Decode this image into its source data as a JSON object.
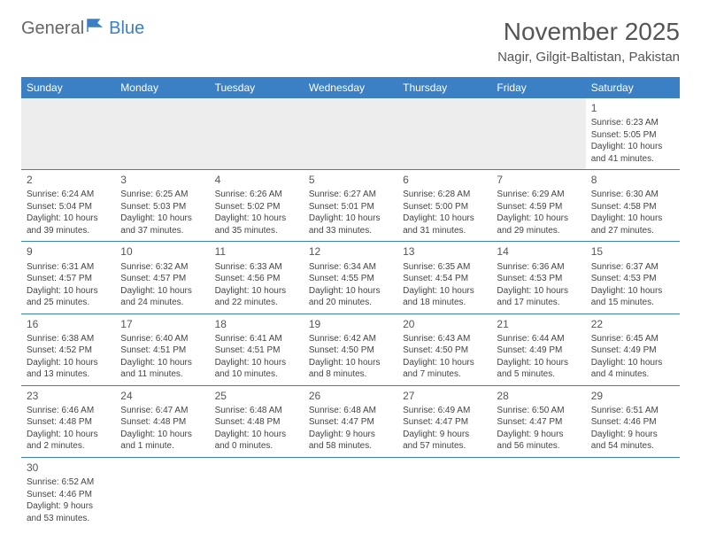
{
  "logo": {
    "part1": "General",
    "part2": "Blue"
  },
  "title": "November 2025",
  "location": "Nagir, Gilgit-Baltistan, Pakistan",
  "colors": {
    "header_bg": "#3b7fc4",
    "header_fg": "#ffffff",
    "blank_bg": "#ededed",
    "border": "#3b7fc4"
  },
  "font": {
    "family": "Arial",
    "title_size": 28,
    "location_size": 15,
    "th_size": 12,
    "cell_size": 10,
    "daynum_size": 12
  },
  "weekdays": [
    "Sunday",
    "Monday",
    "Tuesday",
    "Wednesday",
    "Thursday",
    "Friday",
    "Saturday"
  ],
  "weeks": [
    [
      null,
      null,
      null,
      null,
      null,
      null,
      {
        "n": "1",
        "sunrise": "Sunrise: 6:23 AM",
        "sunset": "Sunset: 5:05 PM",
        "day1": "Daylight: 10 hours",
        "day2": "and 41 minutes."
      }
    ],
    [
      {
        "n": "2",
        "sunrise": "Sunrise: 6:24 AM",
        "sunset": "Sunset: 5:04 PM",
        "day1": "Daylight: 10 hours",
        "day2": "and 39 minutes."
      },
      {
        "n": "3",
        "sunrise": "Sunrise: 6:25 AM",
        "sunset": "Sunset: 5:03 PM",
        "day1": "Daylight: 10 hours",
        "day2": "and 37 minutes."
      },
      {
        "n": "4",
        "sunrise": "Sunrise: 6:26 AM",
        "sunset": "Sunset: 5:02 PM",
        "day1": "Daylight: 10 hours",
        "day2": "and 35 minutes."
      },
      {
        "n": "5",
        "sunrise": "Sunrise: 6:27 AM",
        "sunset": "Sunset: 5:01 PM",
        "day1": "Daylight: 10 hours",
        "day2": "and 33 minutes."
      },
      {
        "n": "6",
        "sunrise": "Sunrise: 6:28 AM",
        "sunset": "Sunset: 5:00 PM",
        "day1": "Daylight: 10 hours",
        "day2": "and 31 minutes."
      },
      {
        "n": "7",
        "sunrise": "Sunrise: 6:29 AM",
        "sunset": "Sunset: 4:59 PM",
        "day1": "Daylight: 10 hours",
        "day2": "and 29 minutes."
      },
      {
        "n": "8",
        "sunrise": "Sunrise: 6:30 AM",
        "sunset": "Sunset: 4:58 PM",
        "day1": "Daylight: 10 hours",
        "day2": "and 27 minutes."
      }
    ],
    [
      {
        "n": "9",
        "sunrise": "Sunrise: 6:31 AM",
        "sunset": "Sunset: 4:57 PM",
        "day1": "Daylight: 10 hours",
        "day2": "and 25 minutes."
      },
      {
        "n": "10",
        "sunrise": "Sunrise: 6:32 AM",
        "sunset": "Sunset: 4:57 PM",
        "day1": "Daylight: 10 hours",
        "day2": "and 24 minutes."
      },
      {
        "n": "11",
        "sunrise": "Sunrise: 6:33 AM",
        "sunset": "Sunset: 4:56 PM",
        "day1": "Daylight: 10 hours",
        "day2": "and 22 minutes."
      },
      {
        "n": "12",
        "sunrise": "Sunrise: 6:34 AM",
        "sunset": "Sunset: 4:55 PM",
        "day1": "Daylight: 10 hours",
        "day2": "and 20 minutes."
      },
      {
        "n": "13",
        "sunrise": "Sunrise: 6:35 AM",
        "sunset": "Sunset: 4:54 PM",
        "day1": "Daylight: 10 hours",
        "day2": "and 18 minutes."
      },
      {
        "n": "14",
        "sunrise": "Sunrise: 6:36 AM",
        "sunset": "Sunset: 4:53 PM",
        "day1": "Daylight: 10 hours",
        "day2": "and 17 minutes."
      },
      {
        "n": "15",
        "sunrise": "Sunrise: 6:37 AM",
        "sunset": "Sunset: 4:53 PM",
        "day1": "Daylight: 10 hours",
        "day2": "and 15 minutes."
      }
    ],
    [
      {
        "n": "16",
        "sunrise": "Sunrise: 6:38 AM",
        "sunset": "Sunset: 4:52 PM",
        "day1": "Daylight: 10 hours",
        "day2": "and 13 minutes."
      },
      {
        "n": "17",
        "sunrise": "Sunrise: 6:40 AM",
        "sunset": "Sunset: 4:51 PM",
        "day1": "Daylight: 10 hours",
        "day2": "and 11 minutes."
      },
      {
        "n": "18",
        "sunrise": "Sunrise: 6:41 AM",
        "sunset": "Sunset: 4:51 PM",
        "day1": "Daylight: 10 hours",
        "day2": "and 10 minutes."
      },
      {
        "n": "19",
        "sunrise": "Sunrise: 6:42 AM",
        "sunset": "Sunset: 4:50 PM",
        "day1": "Daylight: 10 hours",
        "day2": "and 8 minutes."
      },
      {
        "n": "20",
        "sunrise": "Sunrise: 6:43 AM",
        "sunset": "Sunset: 4:50 PM",
        "day1": "Daylight: 10 hours",
        "day2": "and 7 minutes."
      },
      {
        "n": "21",
        "sunrise": "Sunrise: 6:44 AM",
        "sunset": "Sunset: 4:49 PM",
        "day1": "Daylight: 10 hours",
        "day2": "and 5 minutes."
      },
      {
        "n": "22",
        "sunrise": "Sunrise: 6:45 AM",
        "sunset": "Sunset: 4:49 PM",
        "day1": "Daylight: 10 hours",
        "day2": "and 4 minutes."
      }
    ],
    [
      {
        "n": "23",
        "sunrise": "Sunrise: 6:46 AM",
        "sunset": "Sunset: 4:48 PM",
        "day1": "Daylight: 10 hours",
        "day2": "and 2 minutes."
      },
      {
        "n": "24",
        "sunrise": "Sunrise: 6:47 AM",
        "sunset": "Sunset: 4:48 PM",
        "day1": "Daylight: 10 hours",
        "day2": "and 1 minute."
      },
      {
        "n": "25",
        "sunrise": "Sunrise: 6:48 AM",
        "sunset": "Sunset: 4:48 PM",
        "day1": "Daylight: 10 hours",
        "day2": "and 0 minutes."
      },
      {
        "n": "26",
        "sunrise": "Sunrise: 6:48 AM",
        "sunset": "Sunset: 4:47 PM",
        "day1": "Daylight: 9 hours",
        "day2": "and 58 minutes."
      },
      {
        "n": "27",
        "sunrise": "Sunrise: 6:49 AM",
        "sunset": "Sunset: 4:47 PM",
        "day1": "Daylight: 9 hours",
        "day2": "and 57 minutes."
      },
      {
        "n": "28",
        "sunrise": "Sunrise: 6:50 AM",
        "sunset": "Sunset: 4:47 PM",
        "day1": "Daylight: 9 hours",
        "day2": "and 56 minutes."
      },
      {
        "n": "29",
        "sunrise": "Sunrise: 6:51 AM",
        "sunset": "Sunset: 4:46 PM",
        "day1": "Daylight: 9 hours",
        "day2": "and 54 minutes."
      }
    ],
    [
      {
        "n": "30",
        "sunrise": "Sunrise: 6:52 AM",
        "sunset": "Sunset: 4:46 PM",
        "day1": "Daylight: 9 hours",
        "day2": "and 53 minutes."
      },
      null,
      null,
      null,
      null,
      null,
      null
    ]
  ]
}
